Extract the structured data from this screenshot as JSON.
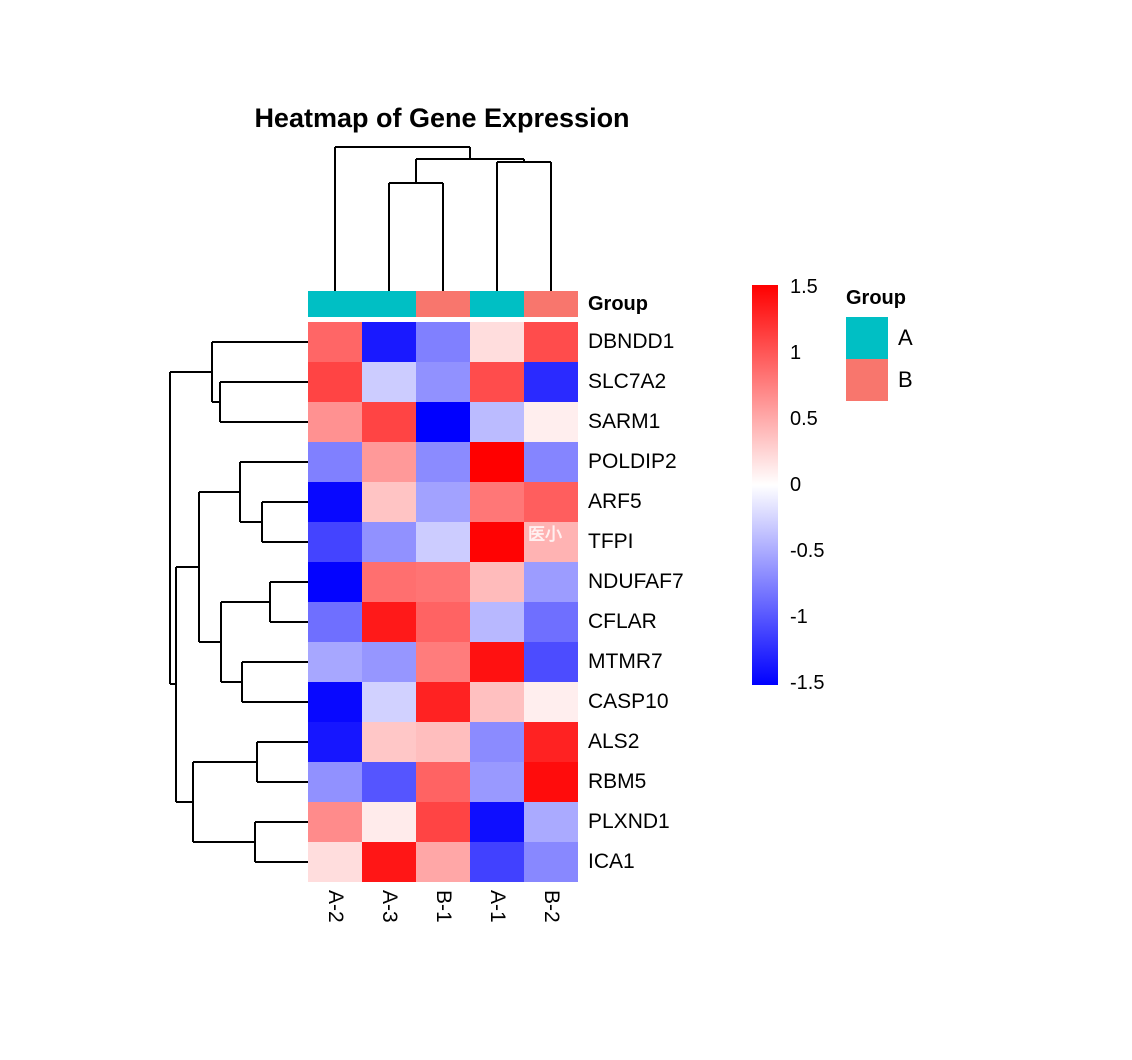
{
  "title": "Heatmap of Gene Expression",
  "watermark": "医小",
  "colors": {
    "group_A": "#00BFC4",
    "group_B": "#F8766D",
    "scale_high": "#FF0000",
    "scale_mid": "#FFFFFF",
    "scale_low": "#0000FF",
    "dendrogram": "#000000",
    "text": "#000000",
    "background": "#FFFFFF"
  },
  "annotation": {
    "label": "Group",
    "columns": [
      "A",
      "A",
      "B",
      "A",
      "B"
    ]
  },
  "legend": {
    "colorbar_ticks": [
      {
        "label": "1.5",
        "value": 1.5
      },
      {
        "label": "1",
        "value": 1
      },
      {
        "label": "0.5",
        "value": 0.5
      },
      {
        "label": "0",
        "value": 0
      },
      {
        "label": "-0.5",
        "value": -0.5
      },
      {
        "label": "-1",
        "value": -1
      },
      {
        "label": "-1.5",
        "value": -1.5
      }
    ],
    "group_title": "Group",
    "group_items": [
      {
        "label": "A",
        "color": "#00BFC4"
      },
      {
        "label": "B",
        "color": "#F8766D"
      }
    ]
  },
  "chart_data": {
    "type": "heatmap",
    "title": "Heatmap of Gene Expression",
    "columns": [
      "A-2",
      "A-3",
      "B-1",
      "A-1",
      "B-2"
    ],
    "rows": [
      "DBNDD1",
      "SLC7A2",
      "SARM1",
      "POLDIP2",
      "ARF5",
      "TFPI",
      "NDUFAF7",
      "CFLAR",
      "MTMR7",
      "CASP10",
      "ALS2",
      "RBM5",
      "PLXND1",
      "ICA1"
    ],
    "column_groups": [
      "A",
      "A",
      "B",
      "A",
      "B"
    ],
    "value_range": [
      -1.5,
      1.5
    ],
    "values": [
      [
        0.9,
        -1.35,
        -0.75,
        0.2,
        1.05
      ],
      [
        1.1,
        -0.3,
        -0.65,
        1.05,
        -1.25
      ],
      [
        0.65,
        1.1,
        -1.5,
        -0.4,
        0.1
      ],
      [
        -0.75,
        0.6,
        -0.68,
        1.5,
        -0.72
      ],
      [
        -1.45,
        0.35,
        -0.55,
        0.8,
        0.95
      ],
      [
        -1.1,
        -0.65,
        -0.3,
        1.48,
        0.45
      ],
      [
        -1.48,
        0.85,
        0.82,
        0.4,
        -0.58
      ],
      [
        -0.85,
        1.35,
        0.92,
        -0.42,
        -0.85
      ],
      [
        -0.52,
        -0.62,
        0.77,
        1.4,
        -1.05
      ],
      [
        -1.45,
        -0.27,
        1.3,
        0.37,
        0.1
      ],
      [
        -1.37,
        0.33,
        0.38,
        -0.68,
        1.3
      ],
      [
        -0.65,
        -1.0,
        0.92,
        -0.6,
        1.43
      ],
      [
        0.68,
        0.12,
        1.1,
        -1.42,
        -0.5
      ],
      [
        0.2,
        1.37,
        0.52,
        -1.12,
        -0.7
      ]
    ],
    "col_dendrogram_segments": [
      [
        335,
        291,
        335,
        147
      ],
      [
        389,
        291,
        389,
        183
      ],
      [
        443,
        291,
        443,
        183
      ],
      [
        497,
        291,
        497,
        162
      ],
      [
        551,
        291,
        551,
        162
      ],
      [
        389,
        183,
        443,
        183
      ],
      [
        416,
        183,
        416,
        159
      ],
      [
        497,
        162,
        551,
        162
      ],
      [
        524,
        162,
        524,
        159
      ],
      [
        416,
        159,
        524,
        159
      ],
      [
        470,
        159,
        470,
        147
      ],
      [
        335,
        147,
        470,
        147
      ]
    ],
    "row_dendrogram_segments": [
      [
        212,
        342,
        308,
        342
      ],
      [
        220,
        382,
        308,
        382
      ],
      [
        220,
        422,
        308,
        422
      ],
      [
        240,
        462,
        308,
        462
      ],
      [
        262,
        502,
        308,
        502
      ],
      [
        262,
        542,
        308,
        542
      ],
      [
        270,
        582,
        308,
        582
      ],
      [
        270,
        622,
        308,
        622
      ],
      [
        242,
        662,
        308,
        662
      ],
      [
        242,
        702,
        308,
        702
      ],
      [
        257,
        742,
        308,
        742
      ],
      [
        257,
        782,
        308,
        782
      ],
      [
        255,
        822,
        308,
        822
      ],
      [
        255,
        862,
        308,
        862
      ],
      [
        220,
        382,
        220,
        422
      ],
      [
        212,
        402,
        220,
        402
      ],
      [
        212,
        342,
        212,
        402
      ],
      [
        170,
        372,
        212,
        372
      ],
      [
        262,
        502,
        262,
        542
      ],
      [
        240,
        522,
        262,
        522
      ],
      [
        240,
        462,
        240,
        522
      ],
      [
        199,
        492,
        240,
        492
      ],
      [
        270,
        582,
        270,
        622
      ],
      [
        221,
        602,
        270,
        602
      ],
      [
        242,
        662,
        242,
        702
      ],
      [
        221,
        682,
        242,
        682
      ],
      [
        221,
        602,
        221,
        682
      ],
      [
        199,
        642,
        221,
        642
      ],
      [
        199,
        492,
        199,
        642
      ],
      [
        176,
        567,
        199,
        567
      ],
      [
        257,
        742,
        257,
        782
      ],
      [
        193,
        762,
        257,
        762
      ],
      [
        255,
        822,
        255,
        862
      ],
      [
        193,
        842,
        255,
        842
      ],
      [
        193,
        762,
        193,
        842
      ],
      [
        176,
        802,
        193,
        802
      ],
      [
        176,
        567,
        176,
        802
      ],
      [
        170,
        684,
        176,
        684
      ],
      [
        170,
        372,
        170,
        684
      ]
    ]
  }
}
